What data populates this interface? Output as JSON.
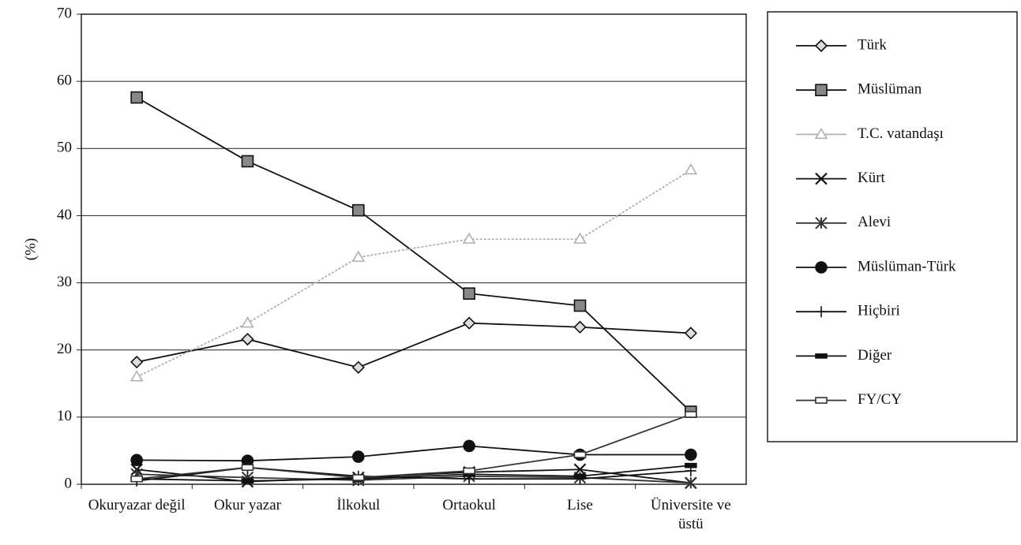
{
  "chart_data": {
    "type": "line",
    "ylabel": "(%)",
    "categories": [
      "Okuryazar değil",
      "Okur yazar",
      "İlkokul",
      "Ortaokul",
      "Lise",
      "Üniversite ve üstü"
    ],
    "ylim": [
      0,
      70
    ],
    "yticks": [
      0,
      10,
      20,
      30,
      40,
      50,
      60,
      70
    ],
    "grid": true,
    "series": [
      {
        "name": "Türk",
        "color": "#111111",
        "marker": "diamond",
        "values": [
          18.2,
          21.6,
          17.4,
          24.0,
          23.4,
          22.5
        ]
      },
      {
        "name": "Müslüman",
        "color": "#111111",
        "marker": "square",
        "values": [
          57.6,
          48.1,
          40.8,
          28.4,
          26.6,
          10.8
        ]
      },
      {
        "name": "T.C. vatandaşı",
        "color": "#b0b0b0",
        "marker": "triangle",
        "values": [
          16.0,
          24.0,
          33.8,
          36.5,
          36.5,
          46.8
        ]
      },
      {
        "name": "Kürt",
        "color": "#111111",
        "marker": "x",
        "values": [
          2.2,
          0.4,
          1.0,
          1.8,
          2.2,
          0.2
        ]
      },
      {
        "name": "Alevi",
        "color": "#333333",
        "marker": "asterisk",
        "values": [
          1.5,
          1.0,
          0.6,
          1.2,
          1.0,
          0.2
        ]
      },
      {
        "name": "Müslüman-Türk",
        "color": "#111111",
        "marker": "circle",
        "values": [
          3.6,
          3.5,
          4.1,
          5.7,
          4.4,
          4.4
        ]
      },
      {
        "name": "Hiçbiri",
        "color": "#111111",
        "marker": "plus",
        "values": [
          0.5,
          2.5,
          1.2,
          0.8,
          0.8,
          2.0
        ]
      },
      {
        "name": "Diğer",
        "color": "#111111",
        "marker": "dash",
        "values": [
          0.8,
          0.5,
          0.8,
          1.5,
          1.2,
          2.8
        ]
      },
      {
        "name": "FY/CY",
        "color": "#333333",
        "marker": "hsquare",
        "values": [
          0.8,
          2.5,
          1.0,
          2.0,
          4.4,
          10.4
        ]
      }
    ]
  }
}
